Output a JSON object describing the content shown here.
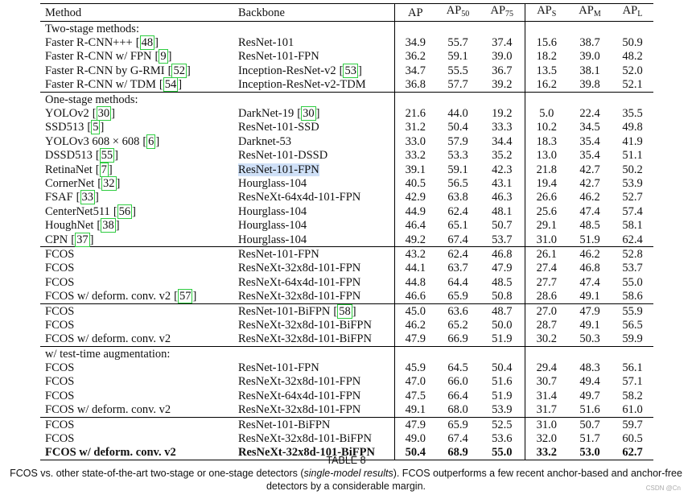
{
  "table": {
    "header": [
      {
        "text": "Method"
      },
      {
        "text": "Backbone"
      },
      {
        "text": "AP"
      },
      {
        "text": "AP",
        "sub": "50"
      },
      {
        "text": "AP",
        "sub": "75"
      },
      {
        "text": "AP",
        "sub": "S"
      },
      {
        "text": "AP",
        "sub": "M"
      },
      {
        "text": "AP",
        "sub": "L"
      }
    ],
    "groups": [
      {
        "label": "Two-stage methods:",
        "rows": [
          {
            "method": "Faster R-CNN+++",
            "method_ref": "[48]",
            "backbone": "ResNet-101",
            "values": [
              "34.9",
              "55.7",
              "37.4",
              "15.6",
              "38.7",
              "50.9"
            ]
          },
          {
            "method": "Faster R-CNN w/ FPN",
            "method_ref": "[9]",
            "backbone": "ResNet-101-FPN",
            "values": [
              "36.2",
              "59.1",
              "39.0",
              "18.2",
              "39.0",
              "48.2"
            ]
          },
          {
            "method": "Faster R-CNN by G-RMI",
            "method_ref": "[52]",
            "backbone": "Inception-ResNet-v2",
            "backbone_ref": "[53]",
            "values": [
              "34.7",
              "55.5",
              "36.7",
              "13.5",
              "38.1",
              "52.0"
            ]
          },
          {
            "method": "Faster R-CNN w/ TDM",
            "method_ref": "[54]",
            "backbone": "Inception-ResNet-v2-TDM",
            "values": [
              "36.8",
              "57.7",
              "39.2",
              "16.2",
              "39.8",
              "52.1"
            ]
          }
        ]
      },
      {
        "label": "One-stage methods:",
        "rows": [
          {
            "method": "YOLOv2",
            "method_ref": "[30]",
            "backbone": "DarkNet-19",
            "backbone_ref": "[30]",
            "values": [
              "21.6",
              "44.0",
              "19.2",
              "5.0",
              "22.4",
              "35.5"
            ]
          },
          {
            "method": "SSD513",
            "method_ref": "[5]",
            "backbone": "ResNet-101-SSD",
            "values": [
              "31.2",
              "50.4",
              "33.3",
              "10.2",
              "34.5",
              "49.8"
            ]
          },
          {
            "method": "YOLOv3 608 × 608",
            "method_ref": "[6]",
            "backbone": "Darknet-53",
            "values": [
              "33.0",
              "57.9",
              "34.4",
              "18.3",
              "35.4",
              "41.9"
            ]
          },
          {
            "method": "DSSD513",
            "method_ref": "[55]",
            "backbone": "ResNet-101-DSSD",
            "values": [
              "33.2",
              "53.3",
              "35.2",
              "13.0",
              "35.4",
              "51.1"
            ]
          },
          {
            "method": "RetinaNet",
            "method_ref": "[7]",
            "backbone": "ResNet-101-FPN",
            "highlight": true,
            "values": [
              "39.1",
              "59.1",
              "42.3",
              "21.8",
              "42.7",
              "50.2"
            ]
          },
          {
            "method": "CornerNet",
            "method_ref": "[32]",
            "backbone": "Hourglass-104",
            "values": [
              "40.5",
              "56.5",
              "43.1",
              "19.4",
              "42.7",
              "53.9"
            ]
          },
          {
            "method": "FSAF",
            "method_ref": "[33]",
            "backbone": "ResNeXt-64x4d-101-FPN",
            "values": [
              "42.9",
              "63.8",
              "46.3",
              "26.6",
              "46.2",
              "52.7"
            ]
          },
          {
            "method": "CenterNet511",
            "method_ref": "[56]",
            "backbone": "Hourglass-104",
            "values": [
              "44.9",
              "62.4",
              "48.1",
              "25.6",
              "47.4",
              "57.4"
            ]
          },
          {
            "method": "HoughNet",
            "method_ref": "[38]",
            "backbone": "Hourglass-104",
            "values": [
              "46.4",
              "65.1",
              "50.7",
              "29.1",
              "48.5",
              "58.1"
            ]
          },
          {
            "method": "CPN",
            "method_ref": "[37]",
            "backbone": "Hourglass-104",
            "values": [
              "49.2",
              "67.4",
              "53.7",
              "31.0",
              "51.9",
              "62.4"
            ]
          }
        ]
      },
      {
        "rows": [
          {
            "method": "FCOS",
            "backbone": "ResNet-101-FPN",
            "values": [
              "43.2",
              "62.4",
              "46.8",
              "26.1",
              "46.2",
              "52.8"
            ]
          },
          {
            "method": "FCOS",
            "backbone": "ResNeXt-32x8d-101-FPN",
            "values": [
              "44.1",
              "63.7",
              "47.9",
              "27.4",
              "46.8",
              "53.7"
            ]
          },
          {
            "method": "FCOS",
            "backbone": "ResNeXt-64x4d-101-FPN",
            "values": [
              "44.8",
              "64.4",
              "48.5",
              "27.7",
              "47.4",
              "55.0"
            ]
          },
          {
            "method": "FCOS w/ deform. conv. v2",
            "method_ref": "[57]",
            "backbone": "ResNeXt-32x8d-101-FPN",
            "values": [
              "46.6",
              "65.9",
              "50.8",
              "28.6",
              "49.1",
              "58.6"
            ]
          }
        ]
      },
      {
        "rows": [
          {
            "method": "FCOS",
            "backbone": "ResNet-101-BiFPN",
            "backbone_ref": "[58]",
            "values": [
              "45.0",
              "63.6",
              "48.7",
              "27.0",
              "47.9",
              "55.9"
            ]
          },
          {
            "method": "FCOS",
            "backbone": "ResNeXt-32x8d-101-BiFPN",
            "values": [
              "46.2",
              "65.2",
              "50.0",
              "28.7",
              "49.1",
              "56.5"
            ]
          },
          {
            "method": "FCOS w/ deform. conv. v2",
            "backbone": "ResNeXt-32x8d-101-BiFPN",
            "values": [
              "47.9",
              "66.9",
              "51.9",
              "30.2",
              "50.3",
              "59.9"
            ]
          }
        ]
      },
      {
        "label": "w/ test-time augmentation:",
        "rows": [
          {
            "method": "FCOS",
            "backbone": "ResNet-101-FPN",
            "values": [
              "45.9",
              "64.5",
              "50.4",
              "29.4",
              "48.3",
              "56.1"
            ]
          },
          {
            "method": "FCOS",
            "backbone": "ResNeXt-32x8d-101-FPN",
            "values": [
              "47.0",
              "66.0",
              "51.6",
              "30.7",
              "49.4",
              "57.1"
            ]
          },
          {
            "method": "FCOS",
            "backbone": "ResNeXt-64x4d-101-FPN",
            "values": [
              "47.5",
              "66.4",
              "51.9",
              "31.4",
              "49.7",
              "58.2"
            ]
          },
          {
            "method": "FCOS w/ deform. conv. v2",
            "backbone": "ResNeXt-32x8d-101-FPN",
            "values": [
              "49.1",
              "68.0",
              "53.9",
              "31.7",
              "51.6",
              "61.0"
            ]
          }
        ]
      },
      {
        "rows": [
          {
            "method": "FCOS",
            "backbone": "ResNet-101-BiFPN",
            "values": [
              "47.9",
              "65.9",
              "52.5",
              "31.0",
              "50.7",
              "59.7"
            ]
          },
          {
            "method": "FCOS",
            "backbone": "ResNeXt-32x8d-101-BiFPN",
            "values": [
              "49.0",
              "67.4",
              "53.6",
              "32.0",
              "51.7",
              "60.5"
            ]
          },
          {
            "method": "FCOS w/ deform. conv. v2",
            "backbone": "ResNeXt-32x8d-101-BiFPN",
            "bold": true,
            "values": [
              "50.4",
              "68.9",
              "55.0",
              "33.2",
              "53.0",
              "62.7"
            ]
          }
        ]
      }
    ]
  },
  "caption": {
    "label": "TABLE 8",
    "parts": [
      "FCOS vs. other state-of-the-art two-stage or one-stage detectors (",
      "single-model results",
      "). FCOS outperforms a few recent anchor-based and anchor-free detectors by a considerable margin."
    ]
  },
  "watermark": "CSDN @Cn"
}
